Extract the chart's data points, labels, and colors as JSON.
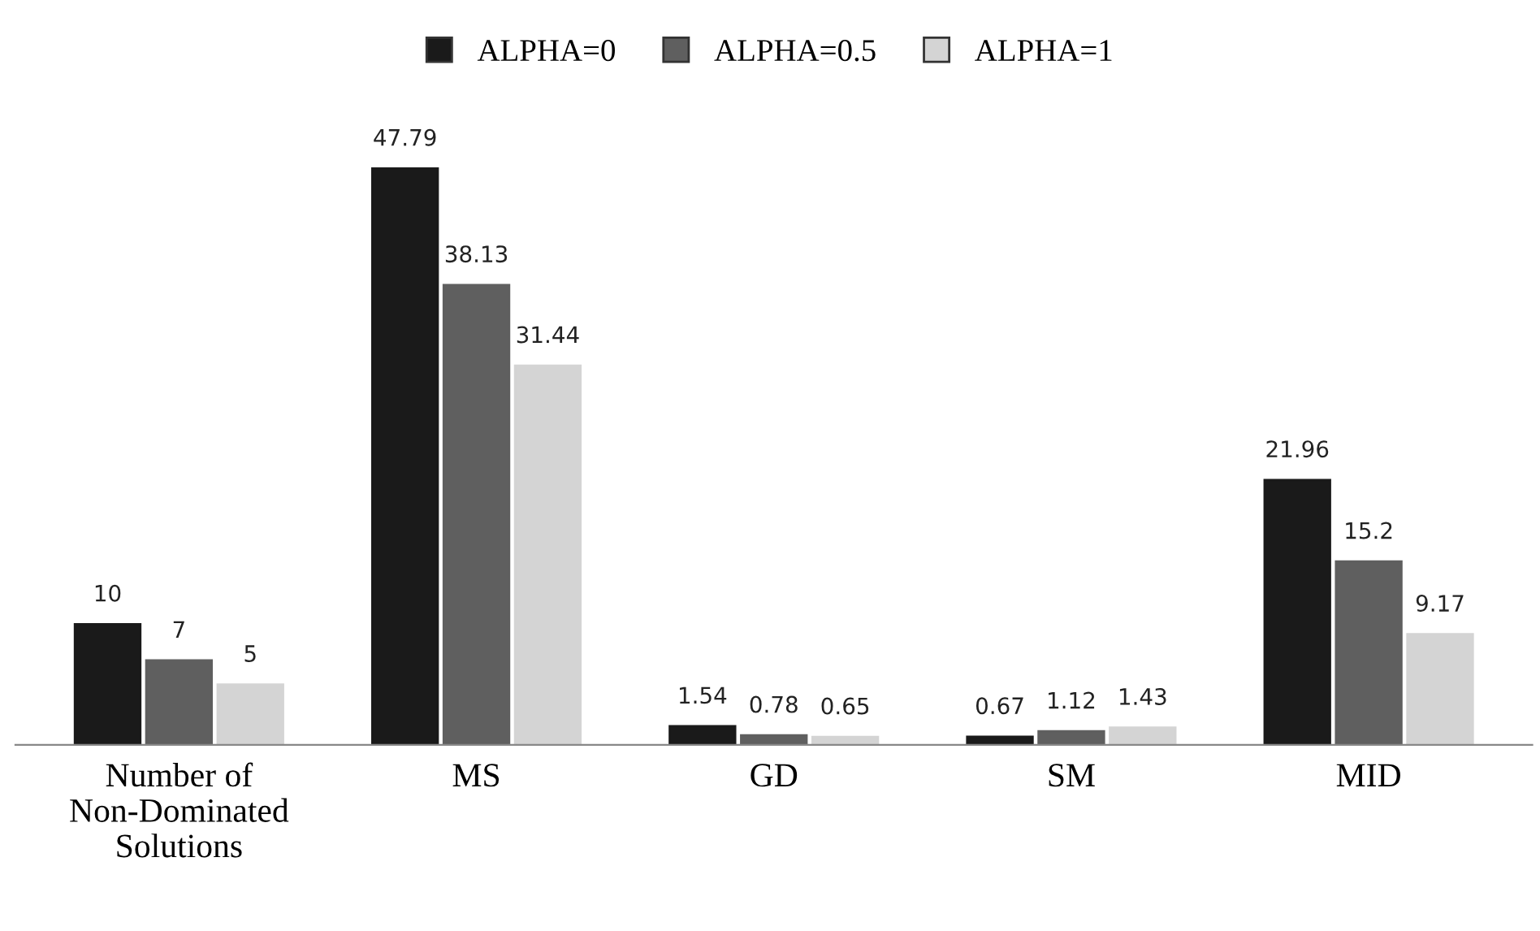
{
  "chart_data": {
    "type": "bar",
    "categories": [
      "Number of\nNon-Dominated\nSolutions",
      "MS",
      "GD",
      "SM",
      "MID"
    ],
    "series": [
      {
        "name": "ALPHA=0",
        "color": "#1a1a1a",
        "values": [
          10,
          47.79,
          1.54,
          0.67,
          21.96
        ]
      },
      {
        "name": "ALPHA=0.5",
        "color": "#5f5f5f",
        "values": [
          7,
          38.13,
          0.78,
          1.12,
          15.2
        ]
      },
      {
        "name": "ALPHA=1",
        "color": "#d4d4d4",
        "values": [
          5,
          31.44,
          0.65,
          1.43,
          9.17
        ]
      }
    ],
    "data_labels": true,
    "legend": "top",
    "grid": false
  }
}
